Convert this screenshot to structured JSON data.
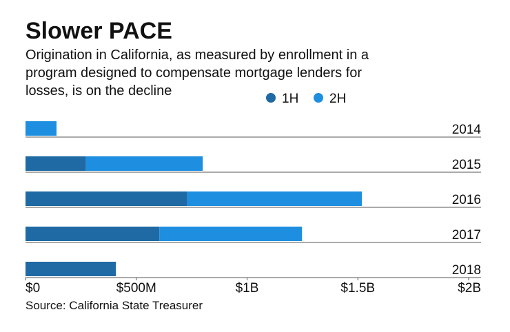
{
  "chart_data": {
    "type": "stacked_bar_horizontal",
    "title": "Slower PACE",
    "subtitle": [
      "Origination in California, as measured by enrollment in a",
      "program designed to compensate mortgage lenders for",
      "losses, is on the decline"
    ],
    "source": "Source: California State Treasurer",
    "categories": [
      "2014",
      "2015",
      "2016",
      "2017",
      "2018"
    ],
    "series": [
      {
        "name": "1H",
        "color": "#1f6aa5",
        "values": [
          null,
          273000000,
          730000000,
          604000000,
          408000000
        ]
      },
      {
        "name": "2H",
        "color": "#1e8ee0",
        "values": [
          140000000,
          527000000,
          788000000,
          644000000,
          null
        ]
      }
    ],
    "xlim": [
      0,
      2000000000
    ],
    "xticks": [
      {
        "value": 0,
        "label": "$0"
      },
      {
        "value": 500000000,
        "label": "$500M"
      },
      {
        "value": 1000000000,
        "label": "$1B"
      },
      {
        "value": 1500000000,
        "label": "$1.5B"
      },
      {
        "value": 2000000000,
        "label": "$2B"
      }
    ]
  }
}
